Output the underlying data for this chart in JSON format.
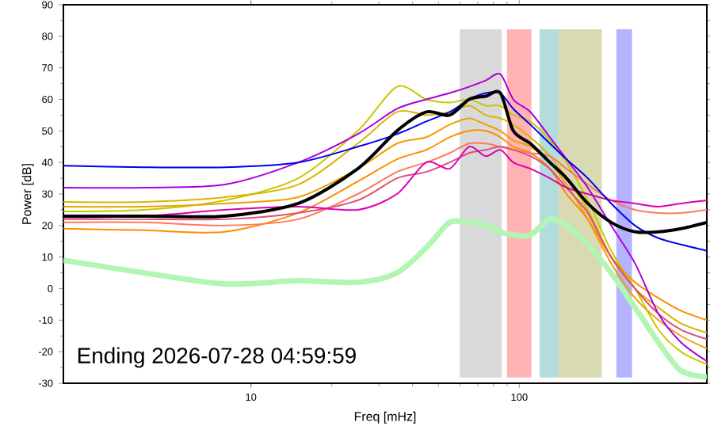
{
  "chart_data": {
    "type": "line",
    "xlabel": "Freq [mHz]",
    "ylabel": "Power [dB]",
    "annotations": [
      "Ending 2026-07-28 04:59:59"
    ],
    "log": "x",
    "xlim": [
      2,
      500
    ],
    "ylim": [
      -30,
      90
    ],
    "xticks": [
      10,
      100
    ],
    "yticks": [
      -30,
      -20,
      -10,
      0,
      10,
      20,
      30,
      40,
      50,
      60,
      70,
      80,
      90
    ],
    "x": [
      2,
      4,
      8,
      15,
      25,
      35,
      45,
      55,
      65,
      75,
      85,
      95,
      110,
      130,
      150,
      180,
      220,
      270,
      330,
      400,
      500
    ],
    "bands": [
      {
        "axis": "x",
        "from": 60,
        "to": 86,
        "color": "#d9d9d9"
      },
      {
        "axis": "x",
        "from": 90,
        "to": 111,
        "color": "#ffb3b3"
      },
      {
        "axis": "x",
        "from": 119,
        "to": 140,
        "color": "#b3dcdc"
      },
      {
        "axis": "x",
        "from": 140,
        "to": 203,
        "color": "#d9d9b3"
      },
      {
        "axis": "x",
        "from": 230,
        "to": 263,
        "color": "#b3b3ff"
      }
    ],
    "series": [
      {
        "color": "#c8c800",
        "values": [
          24.5,
          25,
          28,
          35,
          50,
          64,
          60,
          59,
          60,
          58,
          58,
          55,
          53,
          47,
          40,
          28,
          12,
          0,
          -13,
          -20,
          -24
        ]
      },
      {
        "color": "#dcb400",
        "values": [
          27.5,
          27.5,
          29,
          33,
          46,
          56,
          55,
          56,
          58,
          55,
          54,
          52,
          48,
          42,
          35,
          25,
          10,
          0,
          -6,
          -11,
          -14
        ]
      },
      {
        "color": "#f0a000",
        "values": [
          26,
          26,
          27,
          29,
          38,
          46,
          48,
          52,
          54,
          52,
          50,
          47,
          45,
          40,
          33,
          22,
          8,
          -3,
          -10,
          -15,
          -19
        ]
      },
      {
        "color": "#ff8c00",
        "values": [
          19,
          18.5,
          18,
          24,
          34,
          41,
          44,
          48,
          50,
          50,
          48,
          45,
          43,
          38,
          30,
          22,
          10,
          2,
          -3,
          -7,
          -10
        ]
      },
      {
        "color": "#ff7a5a",
        "values": [
          21,
          21,
          20,
          22,
          30,
          37,
          40,
          43,
          46,
          46,
          45,
          44,
          43,
          42,
          38,
          33,
          28,
          25,
          24,
          24,
          25
        ]
      },
      {
        "color": "#dc5078",
        "values": [
          22,
          22,
          22,
          24,
          28,
          35,
          37,
          40,
          43,
          44,
          45,
          44,
          42,
          38,
          32,
          24,
          10,
          0,
          -8,
          -13,
          -16
        ]
      },
      {
        "color": "#dc00b4",
        "values": [
          22.6,
          23,
          25,
          26,
          25,
          30,
          40,
          38,
          45,
          42,
          44,
          40,
          38,
          35,
          32,
          30,
          28,
          27,
          26,
          27,
          28
        ]
      },
      {
        "color": "#aa00dc",
        "values": [
          32,
          32,
          33,
          40,
          49,
          57,
          60,
          62,
          64,
          66,
          68,
          60,
          56,
          48,
          41,
          32,
          20,
          8,
          -8,
          -17,
          -23
        ]
      },
      {
        "color": "#0000f0",
        "values": [
          39,
          38.5,
          38.5,
          40,
          45,
          49,
          53,
          56,
          60,
          62,
          62,
          57,
          52,
          46,
          41,
          35,
          27,
          20,
          16,
          14,
          12
        ]
      },
      {
        "color": "#000000",
        "values": [
          23,
          23,
          23,
          27,
          38,
          50,
          56,
          55,
          60,
          61,
          62,
          50,
          46,
          40,
          35,
          27,
          21,
          18,
          18,
          19,
          21
        ]
      },
      {
        "color": "#b3f5b3",
        "values": [
          9,
          5,
          1.5,
          2.5,
          2,
          5,
          13,
          21,
          21,
          20,
          18,
          17,
          17,
          22,
          20,
          14,
          5,
          -6,
          -17,
          -26,
          -28
        ]
      }
    ]
  }
}
